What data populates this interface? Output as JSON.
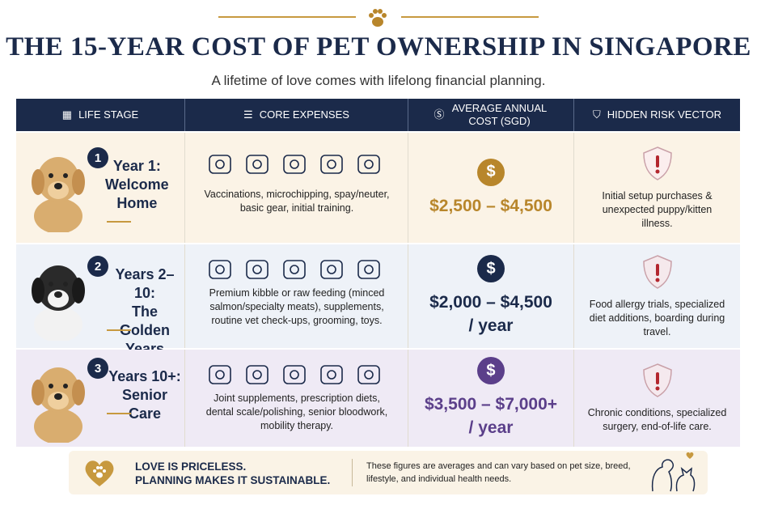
{
  "header": {
    "title": "THE 15-YEAR COST OF PET OWNERSHIP IN SINGAPORE",
    "subtitle": "A lifetime of love comes with lifelong financial planning."
  },
  "table": {
    "headers": [
      "LIFE STAGE",
      "CORE EXPENSES",
      "AVERAGE ANNUAL COST (SGD)",
      "HIDDEN RISK VECTOR"
    ],
    "rows": [
      {
        "number": "1",
        "stage": [
          "Year 1:",
          "Welcome",
          "Home"
        ],
        "expenses": "Vaccinations, microchipping, spay/neuter, basic gear, initial training.",
        "cost": [
          "$2,500 – $4,500"
        ],
        "risk": "Initial setup purchases & unexpected puppy/kitten illness."
      },
      {
        "number": "2",
        "stage": [
          "Years 2–10:",
          "The Golden",
          "Years"
        ],
        "expenses": "Premium kibble or raw feeding (minced salmon/specialty meats), supplements, routine vet check-ups, grooming, toys.",
        "cost": [
          "$2,000 – $4,500",
          "/ year"
        ],
        "risk": "Food allergy trials, specialized diet additions, boarding during travel."
      },
      {
        "number": "3",
        "stage": [
          "Years 10+:",
          "Senior Care"
        ],
        "expenses": "Joint supplements, prescription diets, dental scale/polishing, senior bloodwork, mobility therapy.",
        "cost": [
          "$3,500 – $7,000+",
          "/ year"
        ],
        "risk": "Chronic conditions, specialized surgery, end-of-life care."
      }
    ]
  },
  "footer": {
    "tagline": [
      "LOVE IS PRICELESS.",
      "PLANNING MAKES IT SUSTAINABLE."
    ],
    "note": "These figures are averages and can vary based on pet size, breed, lifestyle, and individual health needs."
  }
}
